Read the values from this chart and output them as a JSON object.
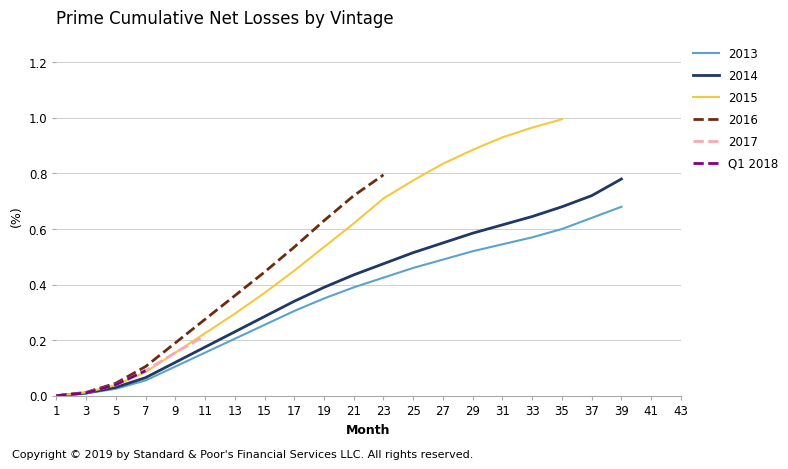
{
  "title": "Prime Cumulative Net Losses by Vintage",
  "xlabel": "Month",
  "ylabel": "(%)",
  "copyright": "Copyright © 2019 by Standard & Poor's Financial Services LLC. All rights reserved.",
  "xlim": [
    1,
    43
  ],
  "ylim": [
    0.0,
    1.3
  ],
  "yticks": [
    0.0,
    0.2,
    0.4,
    0.6,
    0.8,
    1.0,
    1.2
  ],
  "xticks": [
    1,
    3,
    5,
    7,
    9,
    11,
    13,
    15,
    17,
    19,
    21,
    23,
    25,
    27,
    29,
    31,
    33,
    35,
    37,
    39,
    41,
    43
  ],
  "series": [
    {
      "label": "2013",
      "color": "#5BA3C9",
      "linestyle": "solid",
      "linewidth": 1.5,
      "x": [
        1,
        3,
        5,
        7,
        9,
        11,
        13,
        15,
        17,
        19,
        21,
        23,
        25,
        27,
        29,
        31,
        33,
        35,
        37,
        39
      ],
      "y": [
        0.0,
        0.008,
        0.025,
        0.055,
        0.105,
        0.155,
        0.205,
        0.255,
        0.305,
        0.35,
        0.39,
        0.425,
        0.46,
        0.49,
        0.52,
        0.545,
        0.57,
        0.6,
        0.64,
        0.68
      ]
    },
    {
      "label": "2014",
      "color": "#1F3864",
      "linestyle": "solid",
      "linewidth": 2.0,
      "x": [
        1,
        3,
        5,
        7,
        9,
        11,
        13,
        15,
        17,
        19,
        21,
        23,
        25,
        27,
        29,
        31,
        33,
        35,
        37,
        39
      ],
      "y": [
        0.0,
        0.01,
        0.03,
        0.065,
        0.12,
        0.175,
        0.23,
        0.285,
        0.34,
        0.39,
        0.435,
        0.475,
        0.515,
        0.55,
        0.585,
        0.615,
        0.645,
        0.68,
        0.72,
        0.78
      ]
    },
    {
      "label": "2015",
      "color": "#F5C842",
      "linestyle": "solid",
      "linewidth": 1.5,
      "x": [
        1,
        3,
        5,
        7,
        9,
        11,
        13,
        15,
        17,
        19,
        21,
        23,
        25,
        27,
        29,
        31,
        33,
        35
      ],
      "y": [
        0.0,
        0.012,
        0.038,
        0.085,
        0.155,
        0.225,
        0.295,
        0.37,
        0.45,
        0.535,
        0.62,
        0.71,
        0.775,
        0.835,
        0.885,
        0.93,
        0.965,
        0.995
      ]
    },
    {
      "label": "2016",
      "color": "#6B2D10",
      "linestyle": "dashed",
      "linewidth": 2.0,
      "x": [
        1,
        3,
        5,
        7,
        9,
        11,
        13,
        15,
        17,
        19,
        21,
        23
      ],
      "y": [
        0.0,
        0.012,
        0.045,
        0.105,
        0.19,
        0.275,
        0.36,
        0.445,
        0.535,
        0.63,
        0.72,
        0.795
      ]
    },
    {
      "label": "2017",
      "color": "#F4AABB",
      "linestyle": "dashed",
      "linewidth": 2.0,
      "x": [
        1,
        3,
        5,
        7,
        9,
        11
      ],
      "y": [
        0.0,
        0.01,
        0.04,
        0.09,
        0.155,
        0.215
      ]
    },
    {
      "label": "Q1 2018",
      "color": "#800080",
      "linestyle": "dashed",
      "linewidth": 2.0,
      "x": [
        1,
        3,
        5,
        7
      ],
      "y": [
        0.0,
        0.01,
        0.04,
        0.09
      ]
    }
  ],
  "background_color": "#FFFFFF",
  "grid_color": "#C8C8C8",
  "title_fontsize": 12,
  "axis_label_fontsize": 9,
  "tick_fontsize": 8.5,
  "copyright_fontsize": 8
}
